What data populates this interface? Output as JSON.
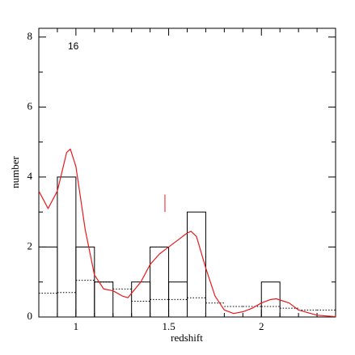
{
  "chart_data": {
    "type": "histogram",
    "xlabel": "redshift",
    "ylabel": "number",
    "annotation": "16",
    "bins": [
      0.8,
      0.9,
      1.0,
      1.1,
      1.2,
      1.3,
      1.4,
      1.5,
      1.6,
      1.7,
      1.8,
      1.9,
      2.0,
      2.1,
      2.2,
      2.3,
      2.4
    ],
    "counts": [
      2,
      4,
      2,
      1,
      0,
      1,
      2,
      1,
      3,
      0,
      0,
      0,
      1,
      0,
      0,
      0
    ],
    "bar_color": "#000000",
    "background": {
      "color": "#000000",
      "values": [
        0.68,
        0.7,
        1.05,
        1.0,
        0.8,
        0.45,
        0.5,
        0.5,
        0.55,
        0.4,
        0.3,
        0.3,
        0.3,
        0.25,
        0.2,
        0.2
      ]
    },
    "curve": {
      "color": "#e8191b",
      "x": [
        0.8,
        0.85,
        0.9,
        0.95,
        0.97,
        1.0,
        1.05,
        1.1,
        1.15,
        1.2,
        1.25,
        1.28,
        1.35,
        1.4,
        1.45,
        1.5,
        1.55,
        1.6,
        1.62,
        1.65,
        1.7,
        1.75,
        1.8,
        1.85,
        1.9,
        1.95,
        2.0,
        2.05,
        2.08,
        2.15,
        2.2,
        2.3,
        2.4
      ],
      "values": [
        3.6,
        3.1,
        3.6,
        4.7,
        4.8,
        4.3,
        2.5,
        1.2,
        0.8,
        0.75,
        0.6,
        0.55,
        1.0,
        1.5,
        1.8,
        2.0,
        2.2,
        2.4,
        2.45,
        2.3,
        1.4,
        0.6,
        0.2,
        0.1,
        0.15,
        0.25,
        0.4,
        0.5,
        0.52,
        0.4,
        0.2,
        0.05,
        0.01
      ]
    },
    "marker": {
      "x": 1.48,
      "y": [
        3.0,
        3.5
      ],
      "color": "#e8191b"
    },
    "xlim": [
      0.8,
      2.4
    ],
    "ylim": [
      0,
      8.25
    ],
    "xticks": [
      1,
      1.5,
      2
    ],
    "yticks": [
      0,
      2,
      4,
      6,
      8
    ],
    "xminorticks": [
      0.9,
      1.1,
      1.2,
      1.3,
      1.4,
      1.6,
      1.7,
      1.8,
      1.9,
      2.1,
      2.2,
      2.3
    ],
    "yminorticks": [
      1,
      3,
      5,
      7
    ]
  }
}
